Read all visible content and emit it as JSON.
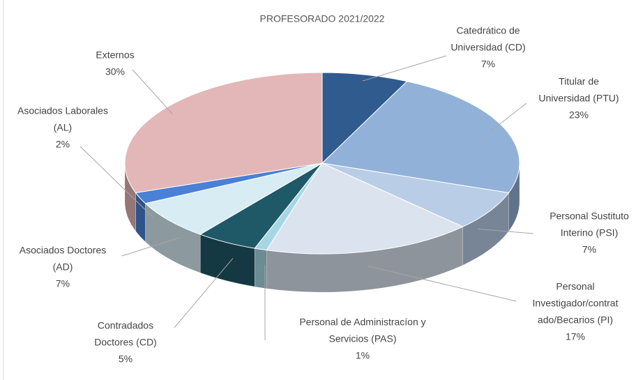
{
  "chart_data": {
    "type": "pie3d",
    "title": "PROFESORADO 2021/2022",
    "categories": [
      [
        "Catedrático de",
        "Universidad (CD)"
      ],
      [
        "Titular de",
        "Universidad (PTU)"
      ],
      [
        "Personal Sustituto",
        "Interino (PSI)"
      ],
      [
        "Personal",
        "Investigador/contrat",
        "ado/Becarios (PI)"
      ],
      [
        "Personal de Administracíon y",
        "Servicios (PAS)"
      ],
      [
        "Contradados",
        "Doctores (CD)"
      ],
      [
        "Asociados Doctores",
        "(AD)"
      ],
      [
        "Asociados Laborales",
        "(AL)"
      ],
      [
        "Externos"
      ]
    ],
    "values": [
      7,
      23,
      7,
      17,
      1,
      5,
      7,
      2,
      30
    ],
    "value_labels": [
      "7%",
      "23%",
      "7%",
      "17%",
      "1%",
      "5%",
      "7%",
      "2%",
      "30%"
    ],
    "colors": [
      "#2f5b8f",
      "#92b1d8",
      "#b9cde6",
      "#dbe3ef",
      "#a6d6e4",
      "#1f5866",
      "#d8ecf3",
      "#4a80d6",
      "#e3b7b7"
    ]
  }
}
